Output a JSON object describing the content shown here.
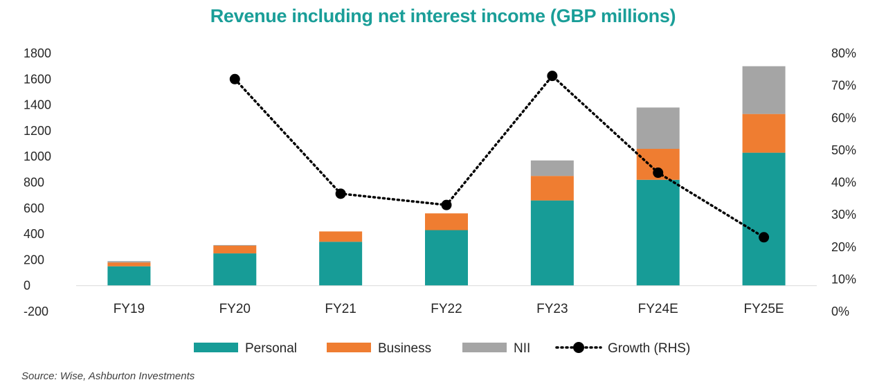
{
  "chart_data": {
    "type": "bar",
    "stacked": true,
    "title": "Revenue including net interest income (GBP millions)",
    "categories": [
      "FY19",
      "FY20",
      "FY21",
      "FY22",
      "FY23",
      "FY24E",
      "FY25E"
    ],
    "series": [
      {
        "name": "Personal",
        "color": "#179c97",
        "values": [
          150,
          250,
          340,
          430,
          660,
          820,
          1030
        ]
      },
      {
        "name": "Business",
        "color": "#ef7d31",
        "values": [
          30,
          60,
          80,
          130,
          190,
          240,
          300
        ]
      },
      {
        "name": "NII",
        "color": "#a5a5a5",
        "values": [
          10,
          5,
          0,
          0,
          120,
          320,
          370
        ]
      }
    ],
    "line_series": {
      "name": "Growth (RHS)",
      "axis": "right",
      "color": "#000000",
      "values": [
        null,
        72,
        36.5,
        33,
        73,
        43,
        23
      ]
    },
    "ylim_left": [
      -200,
      1800
    ],
    "yticks_left": [
      "-200",
      "0",
      "200",
      "400",
      "600",
      "800",
      "1000",
      "1200",
      "1400",
      "1600",
      "1800"
    ],
    "ylim_right": [
      0,
      80
    ],
    "yticks_right": [
      "0%",
      "10%",
      "20%",
      "30%",
      "40%",
      "50%",
      "60%",
      "70%",
      "80%"
    ],
    "legend": [
      "Personal",
      "Business",
      "NII",
      "Growth (RHS)"
    ],
    "legend_position": "bottom",
    "grid": false
  },
  "source": "Source: Wise, Ashburton Investments"
}
